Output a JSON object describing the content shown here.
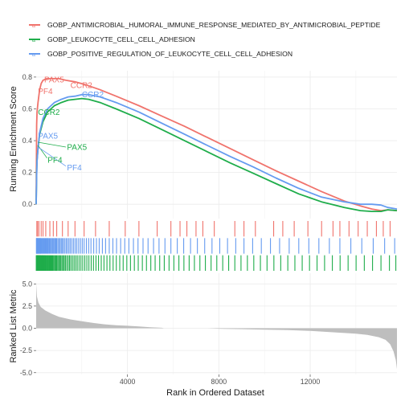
{
  "chart_data": {
    "type": "line",
    "legend": {
      "position": "top",
      "entries": [
        {
          "name": "GOBP_ANTIMICROBIAL_HUMORAL_IMMUNE_RESPONSE_MEDIATED_BY_ANTIMICROBIAL_PEPTIDE",
          "color": "#f0736c"
        },
        {
          "name": "GOBP_LEUKOCYTE_CELL_CELL_ADHESION",
          "color": "#1fad4b"
        },
        {
          "name": "GOBP_POSITIVE_REGULATION_OF_LEUKOCYTE_CELL_CELL_ADHESION",
          "color": "#659bf0"
        }
      ]
    },
    "xlabel": "Rank in Ordered Dataset",
    "xlim": [
      0,
      15800
    ],
    "x_ticks": [
      4000,
      8000,
      12000
    ],
    "x_tick_labels": [
      "4000",
      "8000",
      "12000"
    ],
    "es_panel": {
      "ylabel": "Running Enrichment Score",
      "ylim": [
        -0.09,
        0.84
      ],
      "y_ticks": [
        0.0,
        0.2,
        0.4,
        0.6,
        0.8
      ],
      "y_tick_labels": [
        "0.0",
        "0.2",
        "0.4",
        "0.6",
        "0.8"
      ],
      "grid": true,
      "series": [
        {
          "name": "GOBP_ANTIMICROBIAL_HUMORAL_IMMUNE_RESPONSE_MEDIATED_BY_ANTIMICROBIAL_PEPTIDE",
          "color": "#f0736c",
          "x": [
            0,
            20,
            40,
            80,
            150,
            220,
            300,
            450,
            700,
            1000,
            1300,
            1700,
            2200,
            2800,
            3500,
            4500,
            5500,
            6500,
            7500,
            8500,
            9500,
            10500,
            11500,
            12500,
            13500,
            14200,
            14700,
            15100,
            15400,
            15800
          ],
          "values": [
            0.0,
            0.5,
            0.58,
            0.64,
            0.72,
            0.76,
            0.78,
            0.79,
            0.79,
            0.79,
            0.78,
            0.77,
            0.75,
            0.72,
            0.68,
            0.62,
            0.555,
            0.49,
            0.42,
            0.35,
            0.28,
            0.21,
            0.145,
            0.08,
            0.02,
            -0.01,
            -0.03,
            -0.04,
            -0.035,
            -0.04
          ]
        },
        {
          "name": "GOBP_LEUKOCYTE_CELL_CELL_ADHESION",
          "color": "#1fad4b",
          "x": [
            0,
            20,
            40,
            80,
            150,
            300,
            500,
            800,
            1100,
            1400,
            1700,
            2000,
            2300,
            2800,
            3500,
            4500,
            5500,
            6500,
            7500,
            8500,
            9500,
            10500,
            11500,
            12500,
            13500,
            14200,
            14700,
            15100,
            15400,
            15800
          ],
          "values": [
            0.0,
            0.2,
            0.28,
            0.35,
            0.44,
            0.52,
            0.58,
            0.62,
            0.64,
            0.655,
            0.66,
            0.665,
            0.66,
            0.64,
            0.6,
            0.54,
            0.47,
            0.4,
            0.33,
            0.26,
            0.195,
            0.13,
            0.065,
            0.015,
            -0.02,
            -0.04,
            -0.045,
            -0.045,
            -0.035,
            -0.04
          ]
        },
        {
          "name": "GOBP_POSITIVE_REGULATION_OF_LEUKOCYTE_CELL_CELL_ADHESION",
          "color": "#659bf0",
          "x": [
            0,
            20,
            40,
            80,
            150,
            300,
            500,
            800,
            1100,
            1400,
            1700,
            2000,
            2300,
            2800,
            3500,
            4500,
            5500,
            6500,
            7500,
            8500,
            9500,
            10500,
            11500,
            12500,
            13500,
            14200,
            14700,
            15100,
            15400,
            15800
          ],
          "values": [
            0.0,
            0.18,
            0.27,
            0.35,
            0.45,
            0.54,
            0.6,
            0.64,
            0.66,
            0.675,
            0.68,
            0.69,
            0.69,
            0.675,
            0.64,
            0.58,
            0.51,
            0.44,
            0.37,
            0.3,
            0.235,
            0.165,
            0.1,
            0.045,
            0.015,
            0.0,
            0.0,
            -0.005,
            -0.02,
            -0.03
          ]
        }
      ]
    },
    "rug_panel": {
      "rows": [
        {
          "name": "GOBP_ANTIMICROBIAL_HUMORAL_IMMUNE_RESPONSE_MEDIATED_BY_ANTIMICROBIAL_PEPTIDE",
          "color": "#f0736c",
          "positions": [
            30,
            60,
            120,
            220,
            300,
            420,
            600,
            750,
            900,
            1150,
            1400,
            1700,
            2100,
            2600,
            3200,
            3900,
            4500,
            5300,
            5900,
            6300,
            6600,
            7000,
            7300,
            7800,
            8700,
            9100,
            9600,
            10400,
            10800,
            11300,
            11900,
            12500,
            13000,
            13300,
            13700,
            14100,
            14500,
            14900,
            15200,
            15500
          ]
        },
        {
          "name": "GOBP_POSITIVE_REGULATION_OF_LEUKOCYTE_CELL_CELL_ADHESION",
          "color": "#659bf0",
          "positions": [
            10,
            20,
            30,
            45,
            60,
            75,
            90,
            110,
            130,
            150,
            170,
            190,
            210,
            240,
            270,
            300,
            330,
            360,
            390,
            420,
            450,
            480,
            510,
            540,
            580,
            620,
            660,
            700,
            740,
            780,
            820,
            860,
            900,
            950,
            1000,
            1050,
            1100,
            1150,
            1200,
            1260,
            1320,
            1380,
            1440,
            1500,
            1570,
            1640,
            1710,
            1780,
            1860,
            1940,
            2020,
            2100,
            2200,
            2300,
            2400,
            2520,
            2640,
            2760,
            2900,
            3040,
            3200,
            3360,
            3520,
            3700,
            3880,
            4060,
            4260,
            4460,
            4680,
            4900,
            5140,
            5380,
            5640,
            5900,
            6180,
            6460,
            6760,
            7060,
            7380,
            7700,
            8040,
            8380,
            8740,
            9100,
            9480,
            9860,
            10260,
            10660,
            11080,
            11500,
            11940,
            12380,
            12840,
            13300,
            13780,
            14260,
            14760,
            15260,
            15700
          ]
        },
        {
          "name": "GOBP_LEUKOCYTE_CELL_CELL_ADHESION",
          "color": "#1fad4b",
          "positions": [
            5,
            15,
            25,
            35,
            45,
            55,
            65,
            75,
            85,
            95,
            110,
            125,
            140,
            155,
            170,
            185,
            200,
            220,
            240,
            260,
            280,
            300,
            320,
            345,
            370,
            395,
            420,
            450,
            480,
            510,
            540,
            570,
            600,
            635,
            670,
            705,
            740,
            780,
            820,
            860,
            900,
            945,
            990,
            1035,
            1080,
            1130,
            1180,
            1230,
            1280,
            1340,
            1400,
            1460,
            1520,
            1590,
            1660,
            1730,
            1800,
            1880,
            1960,
            2040,
            2130,
            2220,
            2310,
            2410,
            2510,
            2620,
            2730,
            2850,
            2970,
            3100,
            3230,
            3370,
            3510,
            3660,
            3810,
            3970,
            4130,
            4300,
            4470,
            4650,
            4830,
            5020,
            5210,
            5410,
            5610,
            5820,
            6030,
            6250,
            6470,
            6700,
            6930,
            7170,
            7410,
            7660,
            7910,
            8170,
            8430,
            8700,
            8970,
            9250,
            9530,
            9820,
            10110,
            10410,
            10710,
            11020,
            11330,
            11650,
            11970,
            12300,
            12630,
            12970,
            13310,
            13660,
            14010,
            14370,
            14730,
            15100,
            15470,
            15750
          ]
        }
      ]
    },
    "metric_panel": {
      "ylabel": "Ranked List Metric",
      "ylim": [
        -5.2,
        6.2
      ],
      "y_ticks": [
        -5.0,
        -2.5,
        0.0,
        2.5,
        5.0
      ],
      "y_tick_labels": [
        "-5.0",
        "-2.5",
        "0.0",
        "2.5",
        "5.0"
      ],
      "fill_color": "#bebebe",
      "x": [
        0,
        30,
        100,
        200,
        400,
        700,
        1000,
        1500,
        2000,
        2500,
        3000,
        3500,
        4000,
        4500,
        5000,
        5500,
        5600,
        7500,
        8000,
        9000,
        10000,
        11000,
        12000,
        13000,
        14000,
        14500,
        15000,
        15300,
        15500,
        15650,
        15750,
        15800
      ],
      "values": [
        5.0,
        3.6,
        2.9,
        2.4,
        2.0,
        1.6,
        1.3,
        1.0,
        0.8,
        0.6,
        0.45,
        0.35,
        0.28,
        0.2,
        0.12,
        0.06,
        0.0,
        0.0,
        -0.05,
        -0.1,
        -0.15,
        -0.2,
        -0.3,
        -0.45,
        -0.6,
        -0.75,
        -1.0,
        -1.3,
        -1.8,
        -2.6,
        -3.6,
        -4.6
      ]
    },
    "annotations": [
      {
        "text": "PAX5",
        "x": 350,
        "y": 0.785,
        "color": "#f0736c"
      },
      {
        "text": "PF4",
        "x": 80,
        "y": 0.71,
        "color": "#f0736c"
      },
      {
        "text": "CCR2",
        "x": 1500,
        "y": 0.75,
        "color": "#f0736c"
      },
      {
        "text": "CCR2",
        "x": 2000,
        "y": 0.69,
        "color": "#659bf0"
      },
      {
        "text": "CCR2",
        "x": 80,
        "y": 0.58,
        "color": "#1fad4b"
      },
      {
        "text": "PAX5",
        "x": 80,
        "y": 0.43,
        "color": "#659bf0"
      },
      {
        "text": "PAX5",
        "x": 1350,
        "y": 0.36,
        "color": "#1fad4b"
      },
      {
        "text": "PF4",
        "x": 500,
        "y": 0.28,
        "color": "#1fad4b"
      },
      {
        "text": "PF4",
        "x": 1350,
        "y": 0.23,
        "color": "#659bf0"
      }
    ]
  }
}
